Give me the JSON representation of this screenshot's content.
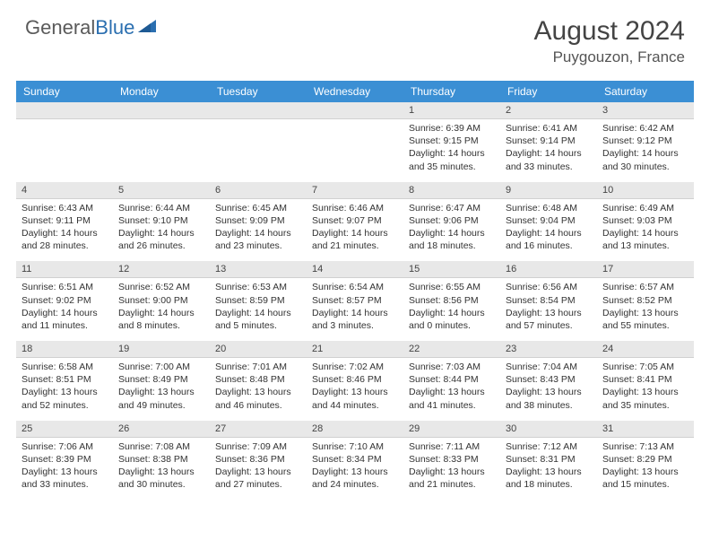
{
  "logo": {
    "text1": "General",
    "text2": "Blue"
  },
  "title": "August 2024",
  "location": "Puygouzon, France",
  "colors": {
    "headerBar": "#3b8fd4",
    "dayNumBg": "#e8e8e8",
    "logoBlue": "#2b6fb0"
  },
  "dayNames": [
    "Sunday",
    "Monday",
    "Tuesday",
    "Wednesday",
    "Thursday",
    "Friday",
    "Saturday"
  ],
  "weeks": [
    [
      {
        "n": "",
        "d": ""
      },
      {
        "n": "",
        "d": ""
      },
      {
        "n": "",
        "d": ""
      },
      {
        "n": "",
        "d": ""
      },
      {
        "n": "1",
        "d": "Sunrise: 6:39 AM\nSunset: 9:15 PM\nDaylight: 14 hours and 35 minutes."
      },
      {
        "n": "2",
        "d": "Sunrise: 6:41 AM\nSunset: 9:14 PM\nDaylight: 14 hours and 33 minutes."
      },
      {
        "n": "3",
        "d": "Sunrise: 6:42 AM\nSunset: 9:12 PM\nDaylight: 14 hours and 30 minutes."
      }
    ],
    [
      {
        "n": "4",
        "d": "Sunrise: 6:43 AM\nSunset: 9:11 PM\nDaylight: 14 hours and 28 minutes."
      },
      {
        "n": "5",
        "d": "Sunrise: 6:44 AM\nSunset: 9:10 PM\nDaylight: 14 hours and 26 minutes."
      },
      {
        "n": "6",
        "d": "Sunrise: 6:45 AM\nSunset: 9:09 PM\nDaylight: 14 hours and 23 minutes."
      },
      {
        "n": "7",
        "d": "Sunrise: 6:46 AM\nSunset: 9:07 PM\nDaylight: 14 hours and 21 minutes."
      },
      {
        "n": "8",
        "d": "Sunrise: 6:47 AM\nSunset: 9:06 PM\nDaylight: 14 hours and 18 minutes."
      },
      {
        "n": "9",
        "d": "Sunrise: 6:48 AM\nSunset: 9:04 PM\nDaylight: 14 hours and 16 minutes."
      },
      {
        "n": "10",
        "d": "Sunrise: 6:49 AM\nSunset: 9:03 PM\nDaylight: 14 hours and 13 minutes."
      }
    ],
    [
      {
        "n": "11",
        "d": "Sunrise: 6:51 AM\nSunset: 9:02 PM\nDaylight: 14 hours and 11 minutes."
      },
      {
        "n": "12",
        "d": "Sunrise: 6:52 AM\nSunset: 9:00 PM\nDaylight: 14 hours and 8 minutes."
      },
      {
        "n": "13",
        "d": "Sunrise: 6:53 AM\nSunset: 8:59 PM\nDaylight: 14 hours and 5 minutes."
      },
      {
        "n": "14",
        "d": "Sunrise: 6:54 AM\nSunset: 8:57 PM\nDaylight: 14 hours and 3 minutes."
      },
      {
        "n": "15",
        "d": "Sunrise: 6:55 AM\nSunset: 8:56 PM\nDaylight: 14 hours and 0 minutes."
      },
      {
        "n": "16",
        "d": "Sunrise: 6:56 AM\nSunset: 8:54 PM\nDaylight: 13 hours and 57 minutes."
      },
      {
        "n": "17",
        "d": "Sunrise: 6:57 AM\nSunset: 8:52 PM\nDaylight: 13 hours and 55 minutes."
      }
    ],
    [
      {
        "n": "18",
        "d": "Sunrise: 6:58 AM\nSunset: 8:51 PM\nDaylight: 13 hours and 52 minutes."
      },
      {
        "n": "19",
        "d": "Sunrise: 7:00 AM\nSunset: 8:49 PM\nDaylight: 13 hours and 49 minutes."
      },
      {
        "n": "20",
        "d": "Sunrise: 7:01 AM\nSunset: 8:48 PM\nDaylight: 13 hours and 46 minutes."
      },
      {
        "n": "21",
        "d": "Sunrise: 7:02 AM\nSunset: 8:46 PM\nDaylight: 13 hours and 44 minutes."
      },
      {
        "n": "22",
        "d": "Sunrise: 7:03 AM\nSunset: 8:44 PM\nDaylight: 13 hours and 41 minutes."
      },
      {
        "n": "23",
        "d": "Sunrise: 7:04 AM\nSunset: 8:43 PM\nDaylight: 13 hours and 38 minutes."
      },
      {
        "n": "24",
        "d": "Sunrise: 7:05 AM\nSunset: 8:41 PM\nDaylight: 13 hours and 35 minutes."
      }
    ],
    [
      {
        "n": "25",
        "d": "Sunrise: 7:06 AM\nSunset: 8:39 PM\nDaylight: 13 hours and 33 minutes."
      },
      {
        "n": "26",
        "d": "Sunrise: 7:08 AM\nSunset: 8:38 PM\nDaylight: 13 hours and 30 minutes."
      },
      {
        "n": "27",
        "d": "Sunrise: 7:09 AM\nSunset: 8:36 PM\nDaylight: 13 hours and 27 minutes."
      },
      {
        "n": "28",
        "d": "Sunrise: 7:10 AM\nSunset: 8:34 PM\nDaylight: 13 hours and 24 minutes."
      },
      {
        "n": "29",
        "d": "Sunrise: 7:11 AM\nSunset: 8:33 PM\nDaylight: 13 hours and 21 minutes."
      },
      {
        "n": "30",
        "d": "Sunrise: 7:12 AM\nSunset: 8:31 PM\nDaylight: 13 hours and 18 minutes."
      },
      {
        "n": "31",
        "d": "Sunrise: 7:13 AM\nSunset: 8:29 PM\nDaylight: 13 hours and 15 minutes."
      }
    ]
  ]
}
